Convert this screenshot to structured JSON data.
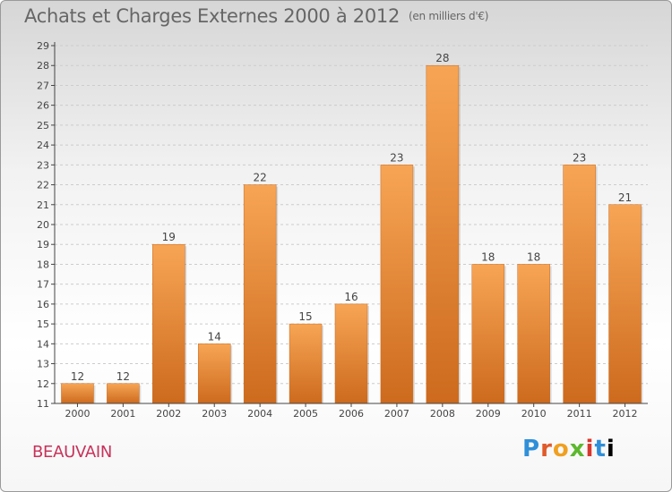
{
  "title": "Achats et Charges Externes 2000 à 2012",
  "unit": "(en milliers d'€)",
  "city": "BEAUVAIN",
  "logo": [
    "P",
    "r",
    "o",
    "x",
    "i",
    "t",
    "i"
  ],
  "colors": {
    "bar_light": "#f7a555",
    "bar_dark": "#cd6a1d",
    "axis": "#444444",
    "grid": "#cccccc",
    "city": "#c8325a"
  },
  "chart_data": {
    "type": "bar",
    "categories": [
      "2000",
      "2001",
      "2002",
      "2003",
      "2004",
      "2005",
      "2006",
      "2007",
      "2008",
      "2009",
      "2010",
      "2011",
      "2012"
    ],
    "values": [
      12,
      12,
      19,
      14,
      22,
      15,
      16,
      23,
      28,
      18,
      18,
      23,
      21
    ],
    "title": "Achats et Charges Externes 2000 à 2012",
    "ylim": [
      11,
      29
    ],
    "ytick_step": 1,
    "grid": true,
    "data_labels": true
  }
}
